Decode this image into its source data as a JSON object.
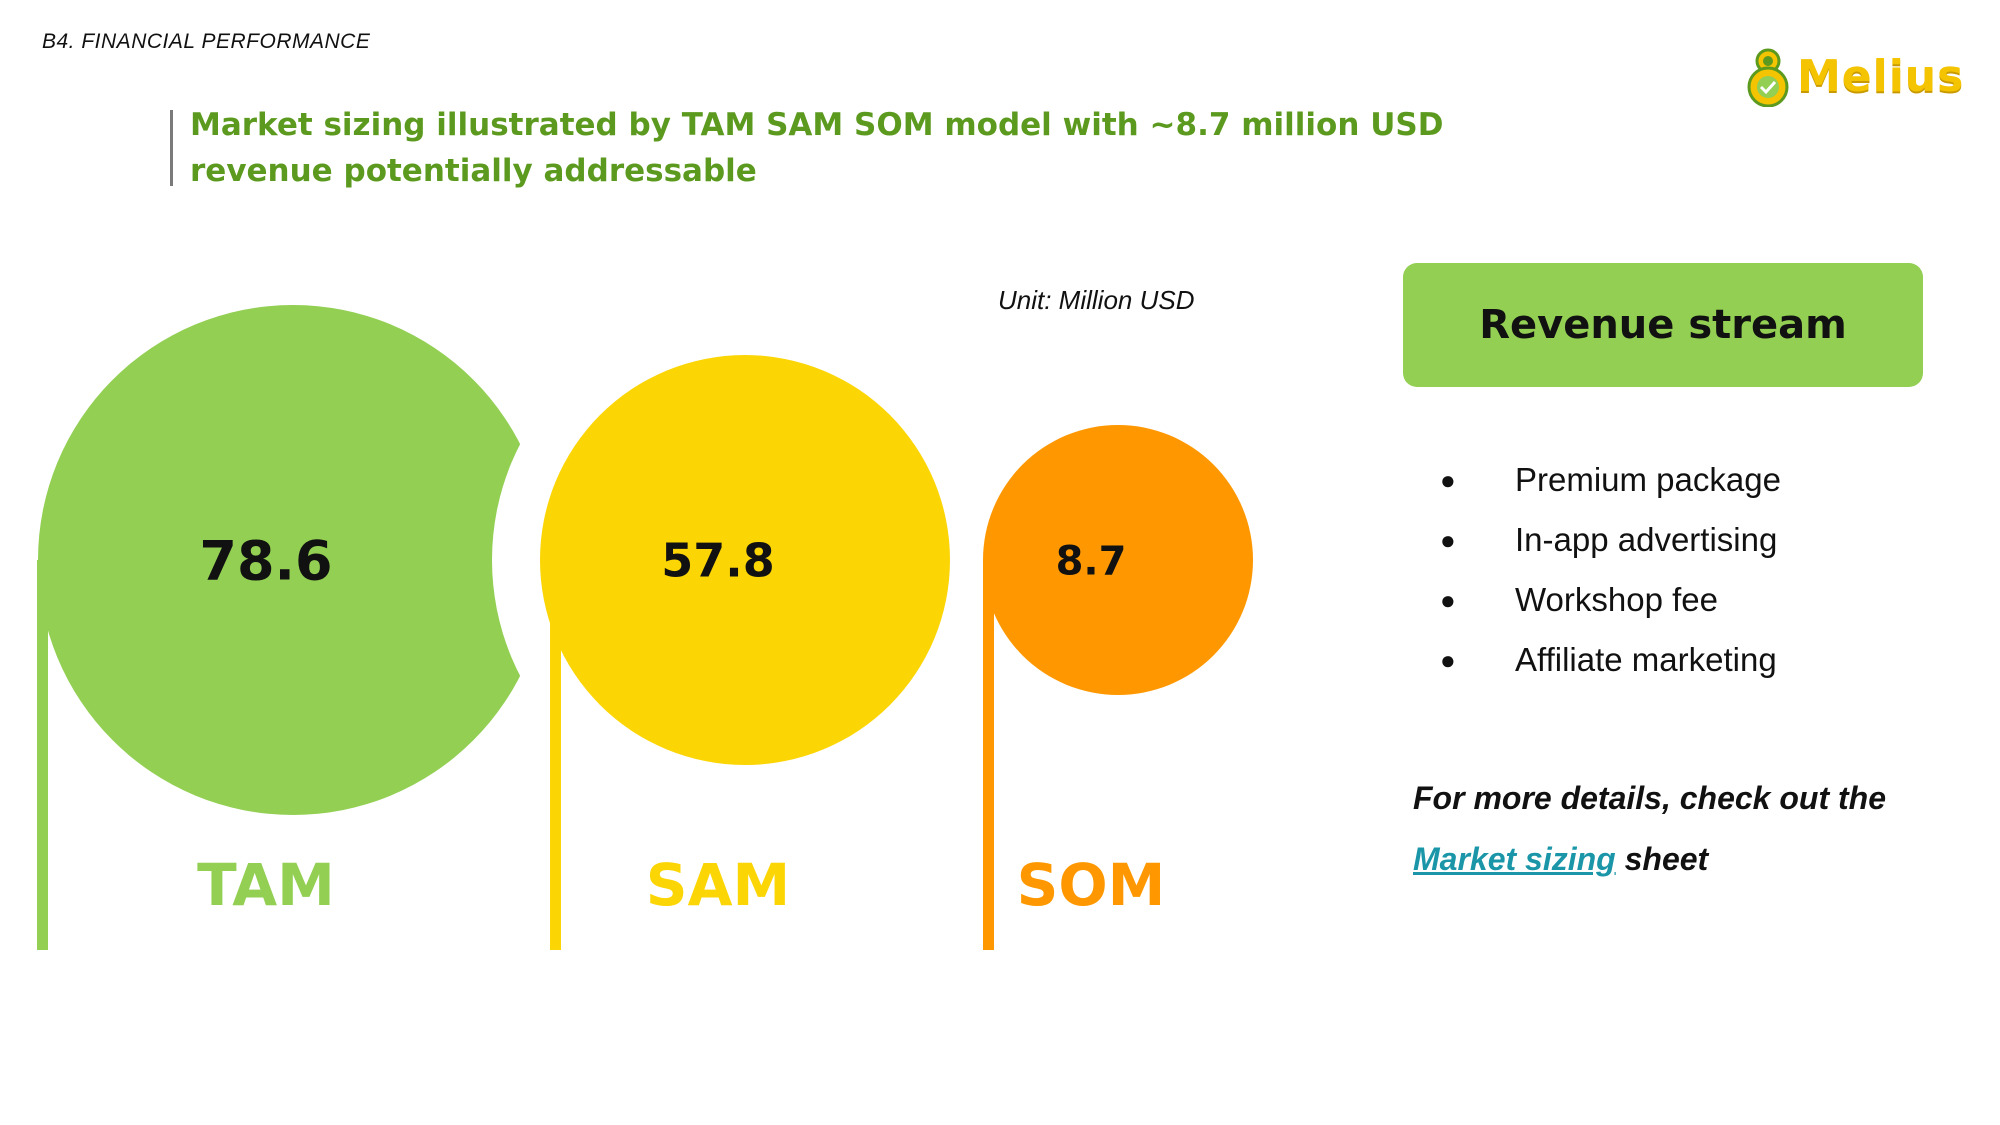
{
  "header": {
    "section": "B4. FINANCIAL PERFORMANCE",
    "title": "Market sizing illustrated by TAM SAM SOM model with ~8.7 million USD revenue potentially addressable"
  },
  "logo": {
    "text": "Melius",
    "icon": "melius-logo-icon"
  },
  "chart_data": {
    "type": "bubble",
    "unit": "Unit: Million USD",
    "series": [
      {
        "name": "TAM",
        "value": 78.6,
        "label": "78.6",
        "color": "#92cf53"
      },
      {
        "name": "SAM",
        "value": 57.8,
        "label": "57.8",
        "color": "#fcd504"
      },
      {
        "name": "SOM",
        "value": 8.7,
        "label": "8.7",
        "color": "#ff9800"
      }
    ]
  },
  "revenue": {
    "title": "Revenue stream",
    "bullet": "●",
    "items": [
      "Premium package",
      "In-app advertising",
      "Workshop fee",
      "Affiliate marketing"
    ]
  },
  "details": {
    "prefix": "For more details, check out the ",
    "link_text": "Market sizing",
    "suffix": " sheet"
  }
}
